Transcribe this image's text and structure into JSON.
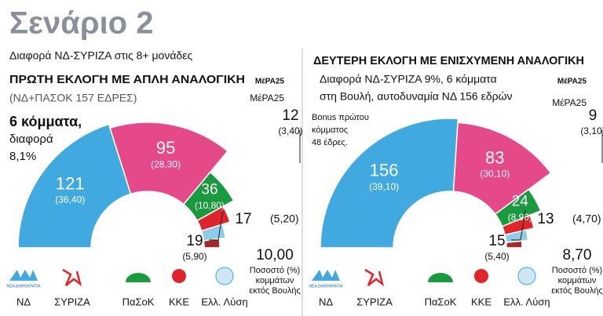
{
  "title": "Σενάριο 2",
  "subtitle": "Διαφορά ΝΔ-ΣΥΡΙΖΑ στις 8+ μονάδες",
  "chart_data": [
    {
      "type": "semicircle",
      "title": "ΠΡΩΤΗ ΕΚΛΟΓΗ ΜΕ ΑΠΛΗ ΑΝΑΛΟΓΙΚΗ",
      "subtitle": [
        "(ΝΔ+ΠΑΣΟΚ 157 ΕΔΡΕΣ)"
      ],
      "note": [
        "6 κόμματα,",
        "διαφορά",
        "8,1%"
      ],
      "categories": [
        "ΝΔ",
        "ΣΥΡΙΖΑ",
        "ΠαΣοΚ",
        "ΚΚΕ",
        "Ελλ. Λύση",
        "ΜέΡΑ25"
      ],
      "values": [
        121,
        95,
        36,
        19,
        17,
        12
      ],
      "shares": [
        36.4,
        28.3,
        10.8,
        5.9,
        5.2,
        3.4
      ],
      "share_labels": [
        "(36,40)",
        "(28,30)",
        "(10,80)",
        "(5,90)",
        "(5,20)",
        "(3,40)"
      ],
      "colors": [
        "#3fa9e0",
        "#e6498a",
        "#1a9a3e",
        "#e0242a",
        "#8ecbe8",
        "#a52a2a"
      ],
      "other_share": 10.0,
      "other_share_label": "10,00",
      "other_label": [
        "Ποσοστό (%)",
        "κομμάτων",
        "εκτός Βουλής"
      ],
      "logo_texts": [
        "ΝΕΑ ΔΗΜΟΚΡΑΤΙΑ",
        "ΜέΡΑ25"
      ]
    },
    {
      "type": "semicircle",
      "title": "ΔΕΥΤΕΡΗ ΕΚΛΟΓΗ ΜΕ ΕΝΙΣΧΥΜΕΝΗ ΑΝΑΛΟΓΙΚΗ",
      "subtitle": [
        "Διαφορά ΝΔ-ΣΥΡΙΖΑ 9%, 6 κόμματα",
        "στη Βουλή, αυτοδυναμία ΝΔ 156 εδρών"
      ],
      "note": [
        "Bonus πρώτου",
        "κόμματος",
        "48 έδρες."
      ],
      "categories": [
        "ΝΔ",
        "ΣΥΡΙΖΑ",
        "ΠαΣοΚ",
        "ΚΚΕ",
        "Ελλ. Λύση",
        "ΜέΡΑ25"
      ],
      "values": [
        156,
        83,
        24,
        15,
        13,
        9
      ],
      "shares": [
        39.1,
        30.1,
        8.9,
        5.4,
        4.7,
        3.1
      ],
      "share_labels": [
        "(39,10)",
        "(30,10)",
        "(8,90)",
        "(5,40)",
        "(4,70)",
        "(3,10)"
      ],
      "colors": [
        "#3fa9e0",
        "#e6498a",
        "#1a9a3e",
        "#e0242a",
        "#8ecbe8",
        "#a52a2a"
      ],
      "other_share": 8.7,
      "other_share_label": "8,70",
      "other_label": [
        "Ποσοστό (%)",
        "κομμάτων",
        "εκτός Βουλής"
      ],
      "logo_texts": [
        "ΝΕΑ ΔΗΜΟΚΡΑΤΙΑ",
        "ΜέΡΑ25"
      ]
    }
  ]
}
